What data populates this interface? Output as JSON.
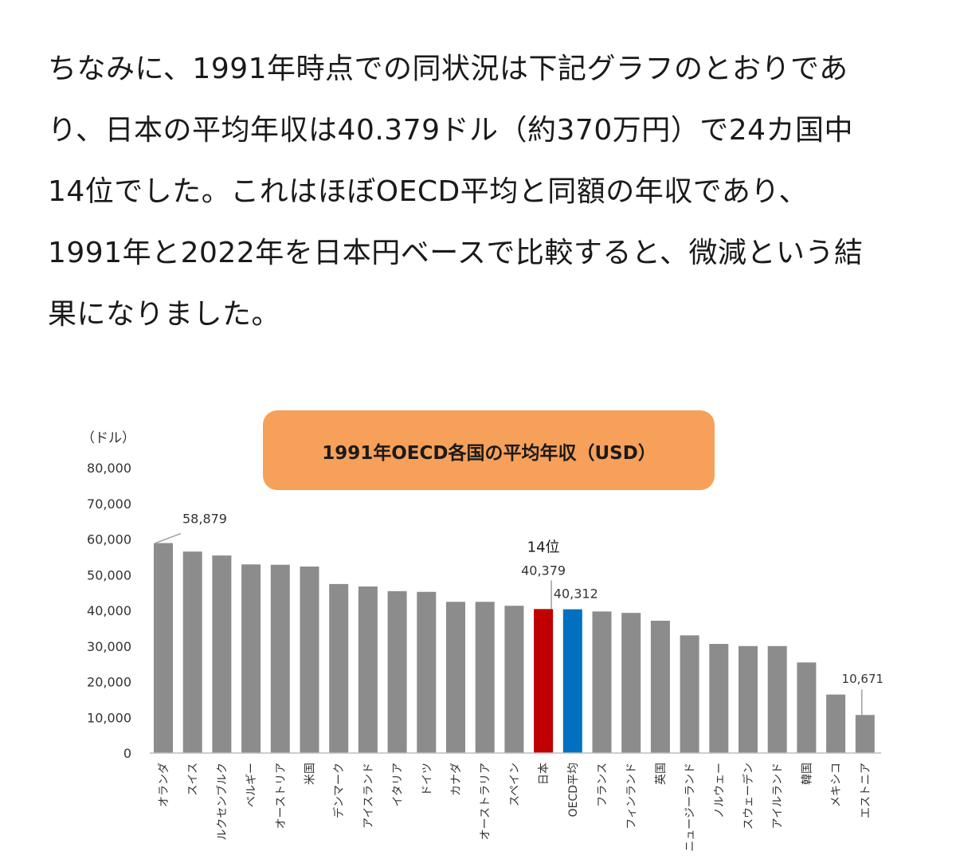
{
  "article": {
    "lines": [
      "ちなみに、1991年時点での同状況は下記グラフのとおりであ",
      "り、日本の平均年収は40.379ドル（約370万円）で24カ国中",
      "14位でした。これはほぼOECD平均と同額の年収であり、",
      "1991年と2022年を日本円ベースで比較すると、微減という結",
      "果になりました。"
    ]
  },
  "colors": {
    "bar_default": "#8c8c8c",
    "bar_japan": "#c00000",
    "bar_oecd": "#0070c0",
    "title_bg": "#f6a05a"
  },
  "chart_data": {
    "type": "bar",
    "title": "1991年OECD各国の平均年収（USD）",
    "ylabel": "（ドル）",
    "ylim": [
      0,
      80000
    ],
    "yticks": [
      "80,000",
      "70,000",
      "60,000",
      "50,000",
      "40,000",
      "30,000",
      "20,000",
      "10,000",
      "0"
    ],
    "categories": [
      "オランダ",
      "スイス",
      "ルクセンブルク",
      "ベルギー",
      "オーストリア",
      "米国",
      "デンマーク",
      "アイスランド",
      "イタリア",
      "ドイツ",
      "カナダ",
      "オーストラリア",
      "スペイン",
      "日本",
      "OECD平均",
      "フランス",
      "フィンランド",
      "英国",
      "ニュージーランド",
      "ノルウェー",
      "スウェーデン",
      "アイルランド",
      "韓国",
      "メキシコ",
      "エストニア"
    ],
    "values": [
      58879,
      56500,
      55400,
      52900,
      52800,
      52300,
      47400,
      46700,
      45400,
      45200,
      42400,
      42400,
      41300,
      40379,
      40312,
      39700,
      39300,
      37100,
      33000,
      30600,
      30000,
      30000,
      25400,
      16400,
      10671
    ],
    "data_labels": [
      {
        "category": "オランダ",
        "text": "58,879"
      },
      {
        "category": "日本",
        "text": "40,379"
      },
      {
        "category": "OECD平均",
        "text": "40,312"
      },
      {
        "category": "エストニア",
        "text": "10,671"
      }
    ],
    "annotation": "14位"
  }
}
